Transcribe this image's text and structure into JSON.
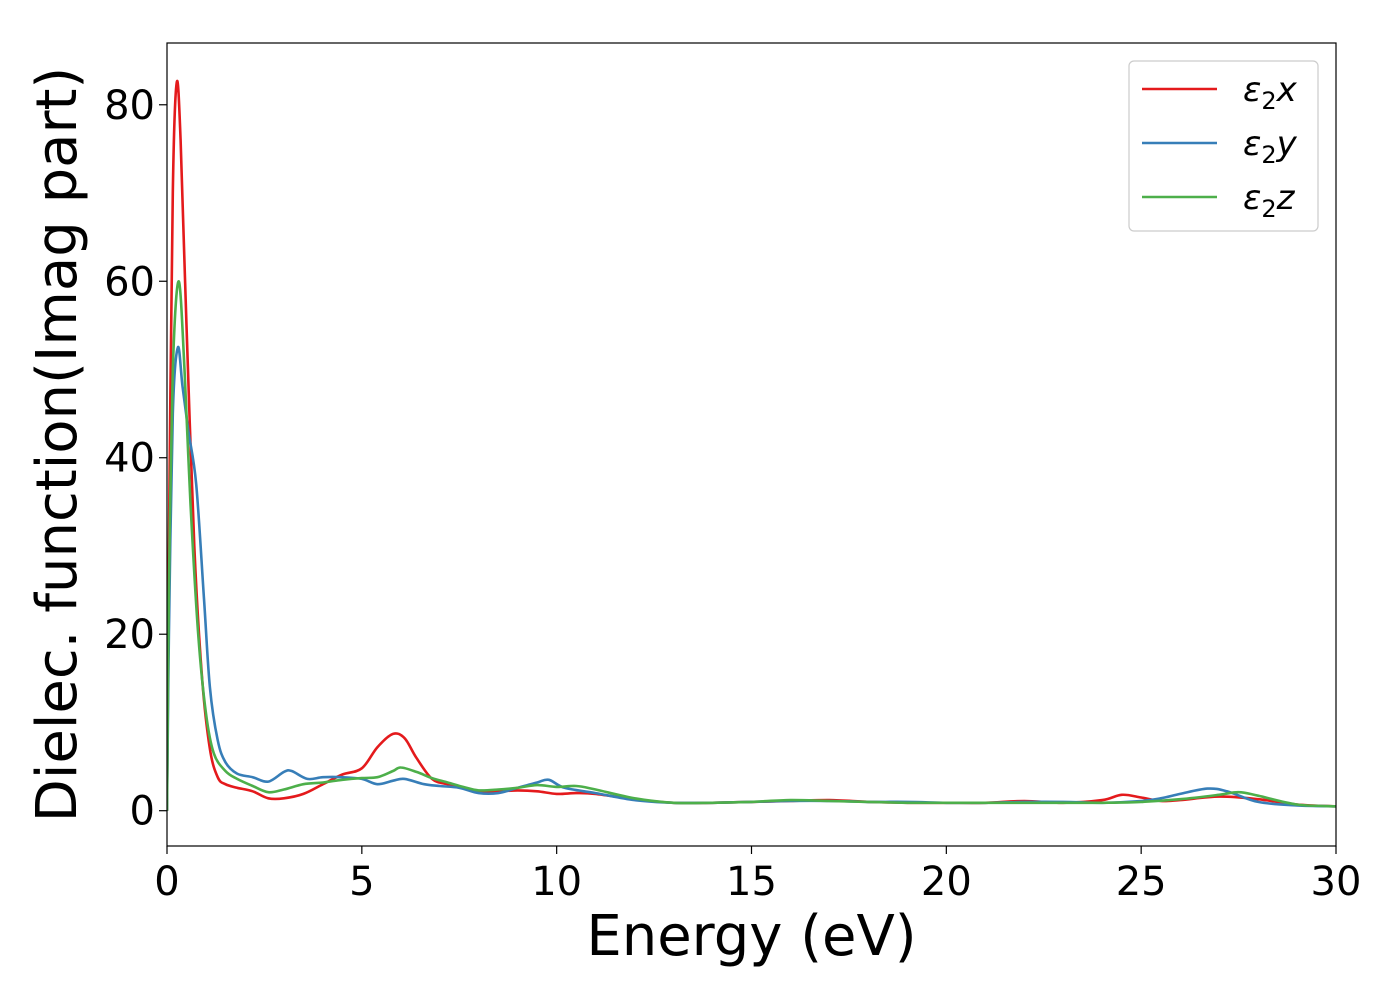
{
  "chart_data": {
    "type": "line",
    "xlabel": "Energy (eV)",
    "ylabel": "Dielec. function(Imag part)",
    "xlim": [
      0,
      30
    ],
    "ylim": [
      -4,
      87
    ],
    "xticks": [
      0,
      5,
      10,
      15,
      20,
      25,
      30
    ],
    "yticks": [
      0,
      20,
      40,
      60,
      80
    ],
    "grid": false,
    "legend_position": "top-right",
    "series": [
      {
        "name": "ε2x",
        "legend_base": "ε",
        "legend_sub": "2",
        "legend_var": "x",
        "color": "#e41a1c",
        "x": [
          0,
          0.05,
          0.15,
          0.25,
          0.35,
          0.5,
          0.7,
          0.9,
          1.1,
          1.3,
          1.5,
          1.8,
          2.2,
          2.6,
          3.0,
          3.5,
          4.0,
          4.5,
          5.0,
          5.4,
          5.8,
          6.1,
          6.4,
          6.8,
          7.2,
          7.6,
          8.0,
          8.5,
          9.0,
          9.5,
          10.0,
          10.5,
          11.0,
          12.0,
          13.0,
          14.0,
          15.0,
          16.0,
          17.0,
          18.0,
          19.0,
          20.0,
          21.0,
          22.0,
          23.0,
          24.0,
          24.5,
          25.0,
          25.5,
          26.0,
          27.0,
          28.0,
          29.0,
          30.0
        ],
        "y": [
          0,
          30,
          70,
          82.5,
          76,
          55,
          30,
          15,
          7,
          3.8,
          3.0,
          2.6,
          2.2,
          1.4,
          1.4,
          1.9,
          3.0,
          4.1,
          4.8,
          7.2,
          8.7,
          8.2,
          6.0,
          3.6,
          3.0,
          2.6,
          2.2,
          2.2,
          2.3,
          2.2,
          1.9,
          2.0,
          1.9,
          1.3,
          0.9,
          0.9,
          1.0,
          1.1,
          1.2,
          1.0,
          0.9,
          0.9,
          0.9,
          1.1,
          0.9,
          1.2,
          1.8,
          1.5,
          1.1,
          1.2,
          1.6,
          1.3,
          0.7,
          0.5
        ]
      },
      {
        "name": "ε2y",
        "legend_base": "ε",
        "legend_sub": "2",
        "legend_var": "y",
        "color": "#377eb8",
        "x": [
          0,
          0.05,
          0.15,
          0.28,
          0.4,
          0.55,
          0.75,
          0.95,
          1.1,
          1.3,
          1.5,
          1.8,
          2.2,
          2.6,
          3.0,
          3.2,
          3.6,
          4.0,
          4.5,
          5.0,
          5.4,
          5.8,
          6.1,
          6.6,
          7.0,
          7.5,
          8.0,
          8.5,
          9.0,
          9.5,
          9.8,
          10.2,
          11.0,
          12.0,
          13.0,
          14.0,
          15.0,
          16.0,
          17.0,
          18.0,
          19.0,
          20.0,
          21.0,
          22.0,
          23.0,
          24.0,
          25.0,
          25.5,
          26.0,
          26.7,
          27.2,
          28.0,
          29.0,
          30.0
        ],
        "y": [
          0,
          20,
          45,
          52.5,
          48,
          43,
          37,
          24,
          14,
          8,
          5.5,
          4.2,
          3.8,
          3.3,
          4.4,
          4.5,
          3.6,
          3.8,
          3.8,
          3.6,
          3.0,
          3.4,
          3.6,
          3.0,
          2.8,
          2.6,
          2.0,
          2.0,
          2.6,
          3.2,
          3.5,
          2.6,
          2.0,
          1.2,
          0.9,
          0.9,
          1.0,
          1.1,
          1.1,
          1.0,
          1.0,
          0.9,
          0.9,
          1.0,
          1.0,
          0.9,
          1.1,
          1.4,
          1.9,
          2.5,
          2.2,
          1.0,
          0.6,
          0.5
        ]
      },
      {
        "name": "ε2z",
        "legend_base": "ε",
        "legend_sub": "2",
        "legend_var": "z",
        "color": "#4daf4a",
        "x": [
          0,
          0.05,
          0.15,
          0.3,
          0.45,
          0.6,
          0.8,
          1.0,
          1.2,
          1.5,
          1.8,
          2.2,
          2.6,
          3.0,
          3.5,
          4.0,
          4.5,
          5.0,
          5.4,
          5.8,
          6.0,
          6.4,
          6.8,
          7.2,
          7.6,
          8.0,
          8.5,
          9.0,
          9.5,
          10.0,
          10.5,
          11.0,
          12.0,
          13.0,
          14.0,
          15.0,
          16.0,
          17.0,
          18.0,
          19.0,
          20.0,
          21.0,
          22.0,
          23.0,
          24.0,
          25.0,
          26.0,
          27.0,
          27.5,
          28.0,
          29.0,
          30.0
        ],
        "y": [
          0,
          25,
          50,
          60,
          50,
          35,
          20,
          11,
          6.5,
          4.5,
          3.6,
          2.8,
          2.1,
          2.4,
          3.0,
          3.2,
          3.5,
          3.7,
          3.8,
          4.5,
          4.9,
          4.4,
          3.7,
          3.2,
          2.7,
          2.3,
          2.4,
          2.6,
          2.9,
          2.7,
          2.8,
          2.4,
          1.4,
          0.9,
          0.9,
          1.0,
          1.2,
          1.1,
          1.0,
          0.9,
          0.9,
          0.9,
          0.9,
          0.9,
          0.9,
          1.0,
          1.3,
          1.8,
          2.1,
          1.7,
          0.7,
          0.5
        ]
      }
    ]
  }
}
